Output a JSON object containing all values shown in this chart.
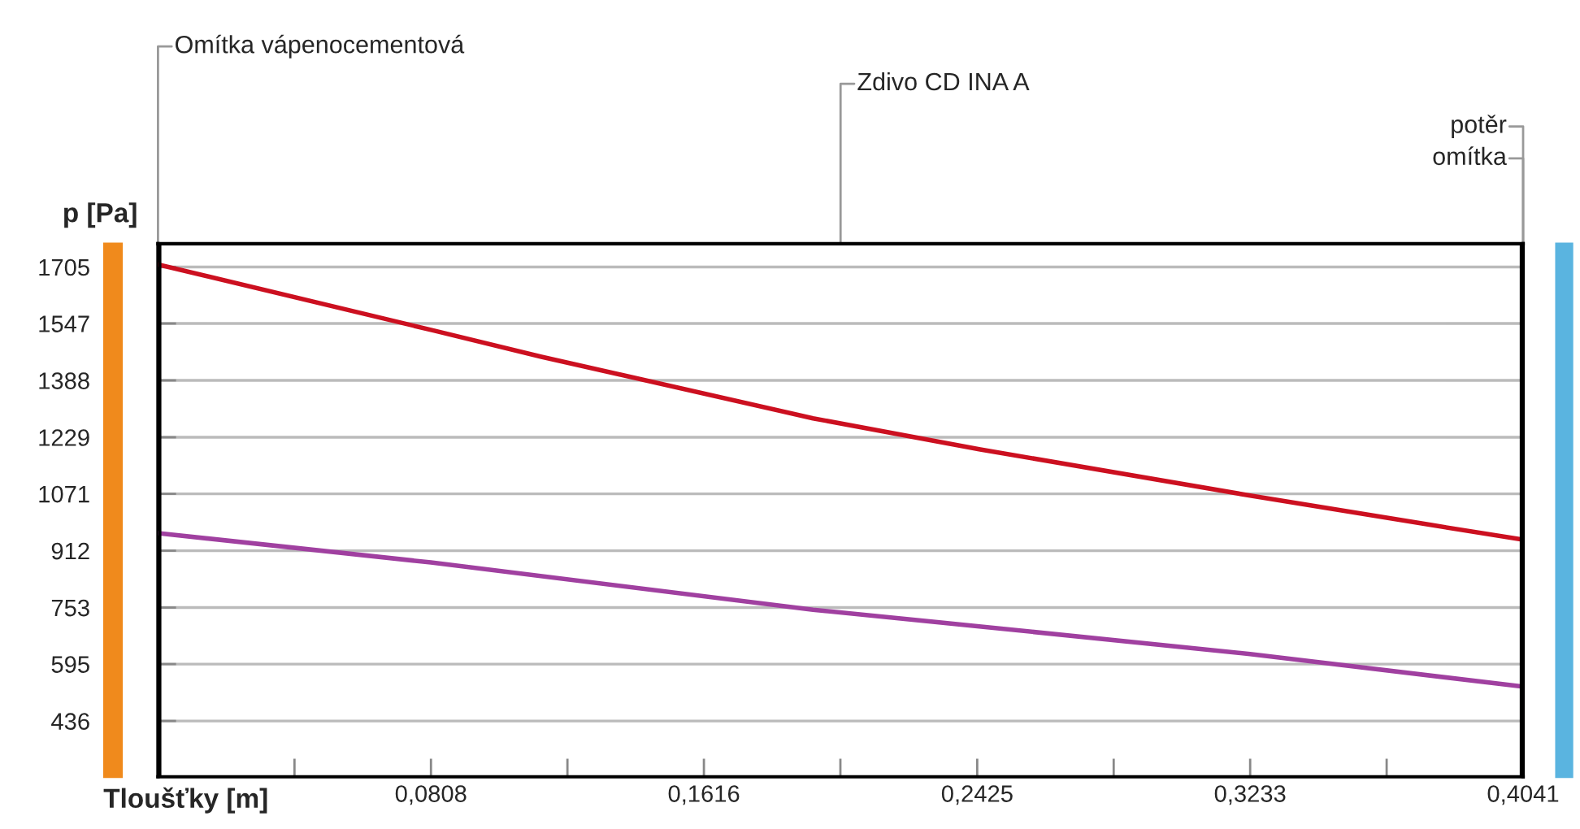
{
  "chart_data": {
    "type": "line",
    "xlabel": "Tloušťky [m]",
    "ylabel": "p [Pa]",
    "series": [
      {
        "color": "#cc1020",
        "x": [
          0,
          0.0818,
          0.1135,
          0.1939,
          0.2434,
          0.3233,
          0.3767,
          0.4041
        ],
        "values": [
          1712,
          1527,
          1454,
          1282,
          1195,
          1066,
          984,
          943
        ]
      },
      {
        "color": "#a040a0",
        "x": [
          0,
          0.0808,
          0.1939,
          0.2425,
          0.3233,
          0.404,
          0.4041
        ],
        "values": [
          961,
          879,
          747,
          701,
          623,
          532,
          441
        ]
      }
    ],
    "xlim": [
      0,
      0.4041
    ],
    "ylim": [
      280,
      1770
    ],
    "xticks": [
      {
        "value": 0.0404,
        "label": null
      },
      {
        "value": 0.0808,
        "label": "0,0808"
      },
      {
        "value": 0.1212,
        "label": null
      },
      {
        "value": 0.1616,
        "label": "0,1616"
      },
      {
        "value": 0.202,
        "label": null
      },
      {
        "value": 0.2425,
        "label": "0,2425"
      },
      {
        "value": 0.2829,
        "label": null
      },
      {
        "value": 0.3233,
        "label": "0,3233"
      },
      {
        "value": 0.3637,
        "label": null
      },
      {
        "value": 0.4041,
        "label": "0,4041"
      }
    ],
    "yticks": [
      436,
      595,
      753,
      912,
      1071,
      1229,
      1388,
      1547,
      1705
    ],
    "ref_lines": [
      {
        "axis": "x",
        "value": 0,
        "color": "#000000"
      },
      {
        "axis": "x",
        "value": 0.4041,
        "color": "#000000"
      }
    ],
    "annotations": [
      "Omítka vápenocementová",
      "Zdivo CD INA A",
      "potěr",
      "omítka"
    ],
    "grid": "y",
    "marker": "none",
    "line_style": "solid"
  }
}
